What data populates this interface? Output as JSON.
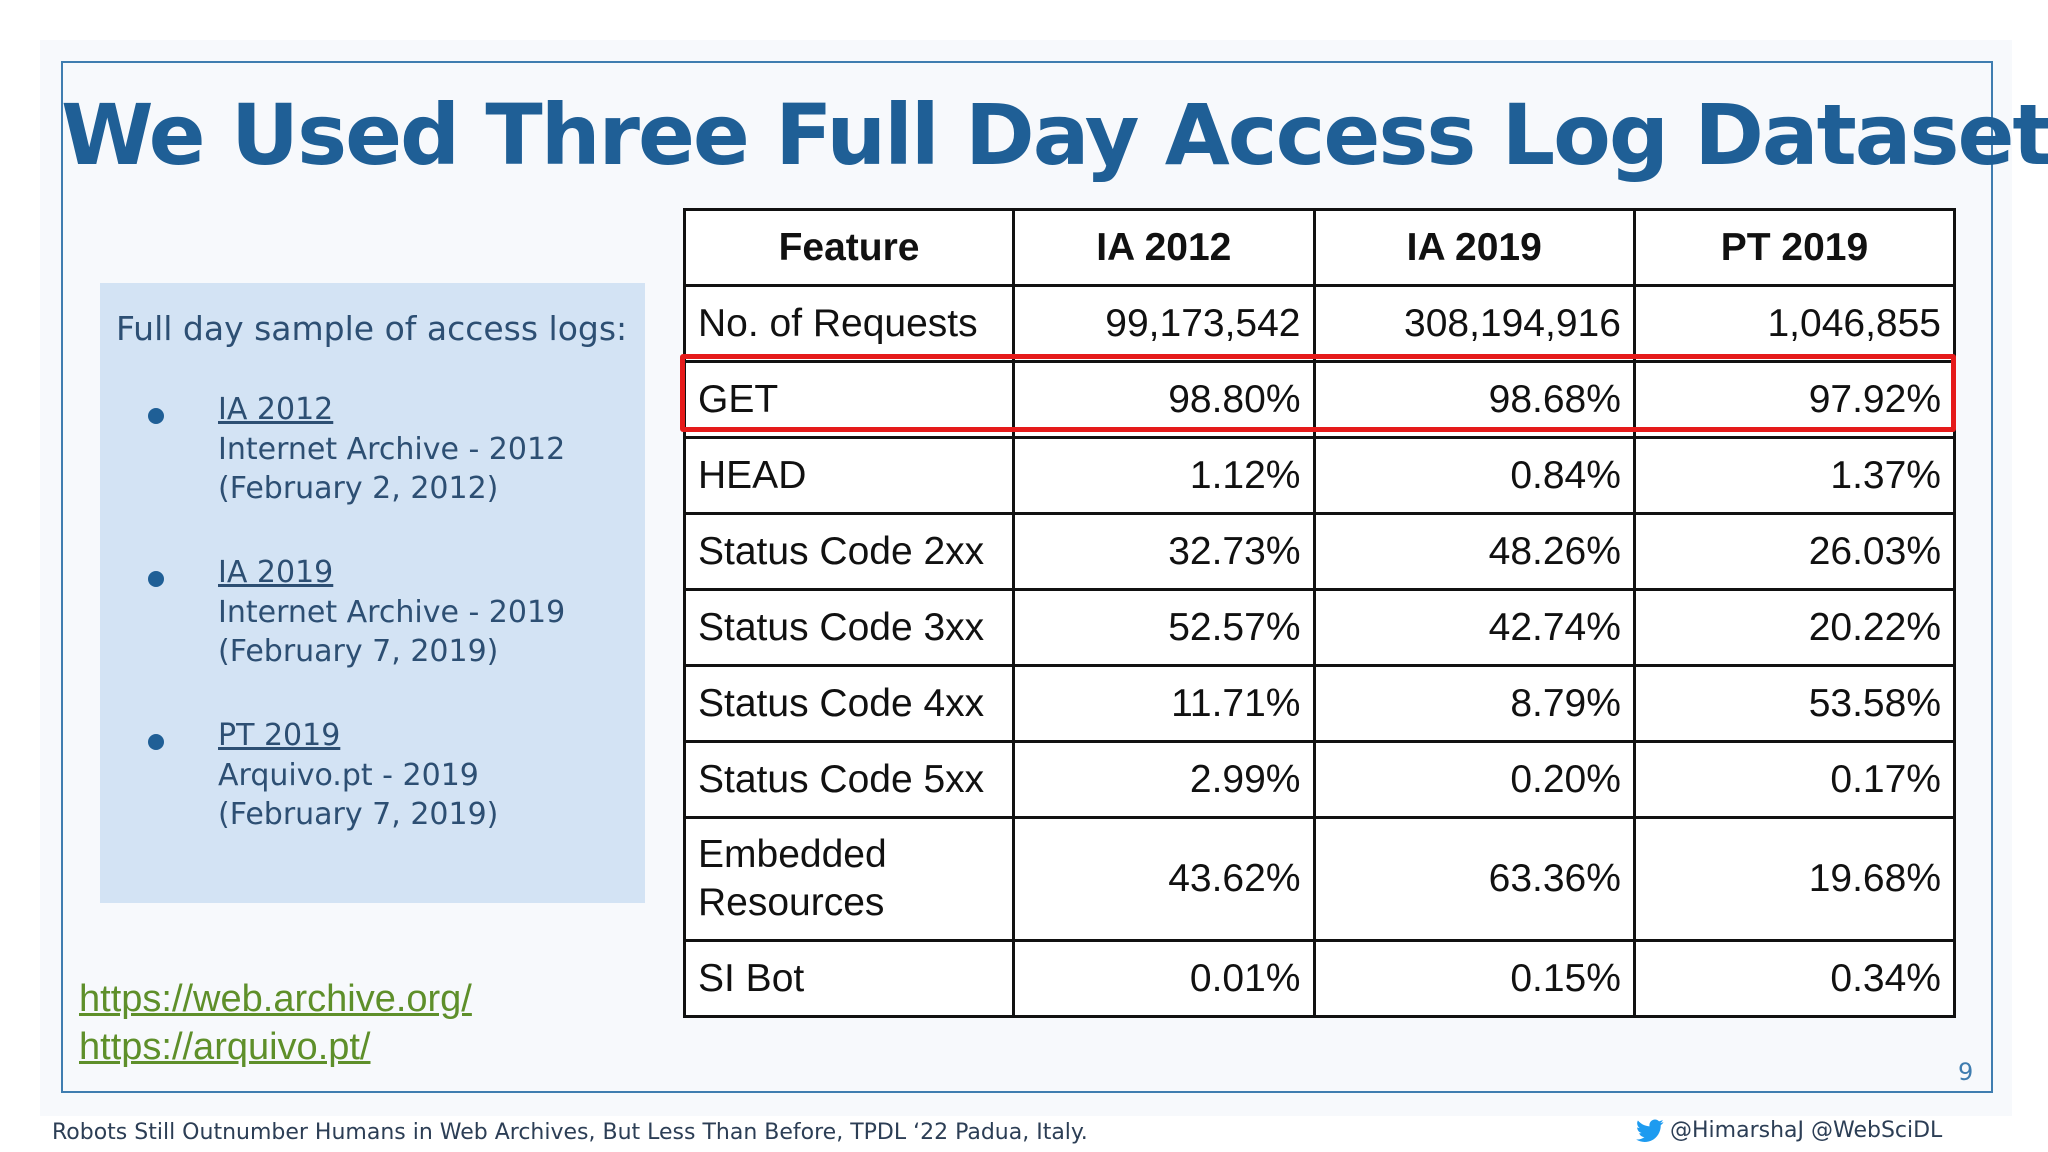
{
  "slide": {
    "title": "We Used Three Full Day Access Log Datasets",
    "page_number": "9",
    "footer_citation": "Robots Still Outnumber Humans in Web Archives, But Less Than Before, TPDL ‘22 Padua, Italy.",
    "handles": "@HimarshaJ @WebSciDL",
    "colors": {
      "title": "#1f5f96",
      "frame": "#3f7db0",
      "highlight": "#e51a1a",
      "links": "#5e8f2a",
      "info_box": "#d3e3f4"
    }
  },
  "info_box": {
    "heading": "Full day sample of access logs:",
    "datasets": [
      {
        "name": "IA 2012",
        "line1": "Internet Archive - 2012",
        "line2": "(February 2, 2012)"
      },
      {
        "name": "IA 2019",
        "line1": "Internet Archive - 2019",
        "line2": "(February 7, 2019)"
      },
      {
        "name": "PT 2019",
        "line1": "Arquivo.pt - 2019",
        "line2": "(February 7, 2019)"
      }
    ]
  },
  "links": [
    "https://web.archive.org/",
    "https://arquivo.pt/"
  ],
  "table": {
    "headers": [
      "Feature",
      "IA 2012",
      "IA 2019",
      "PT 2019"
    ],
    "rows": [
      {
        "feature": "No. of Requests",
        "ia2012": "99,173,542",
        "ia2019": "308,194,916",
        "pt2019": "1,046,855"
      },
      {
        "feature": "GET",
        "ia2012": "98.80%",
        "ia2019": "98.68%",
        "pt2019": "97.92%"
      },
      {
        "feature": "HEAD",
        "ia2012": "1.12%",
        "ia2019": "0.84%",
        "pt2019": "1.37%"
      },
      {
        "feature": "Status Code 2xx",
        "ia2012": "32.73%",
        "ia2019": "48.26%",
        "pt2019": "26.03%"
      },
      {
        "feature": "Status Code 3xx",
        "ia2012": "52.57%",
        "ia2019": "42.74%",
        "pt2019": "20.22%"
      },
      {
        "feature": "Status Code 4xx",
        "ia2012": "11.71%",
        "ia2019": "8.79%",
        "pt2019": "53.58%"
      },
      {
        "feature": "Status Code 5xx",
        "ia2012": "2.99%",
        "ia2019": "0.20%",
        "pt2019": "0.17%"
      },
      {
        "feature_line1": "Embedded",
        "feature_line2": "Resources",
        "ia2012": "43.62%",
        "ia2019": "63.36%",
        "pt2019": "19.68%"
      },
      {
        "feature": "SI Bot",
        "ia2012": "0.01%",
        "ia2019": "0.15%",
        "pt2019": "0.34%"
      }
    ],
    "highlighted_row": "GET"
  }
}
